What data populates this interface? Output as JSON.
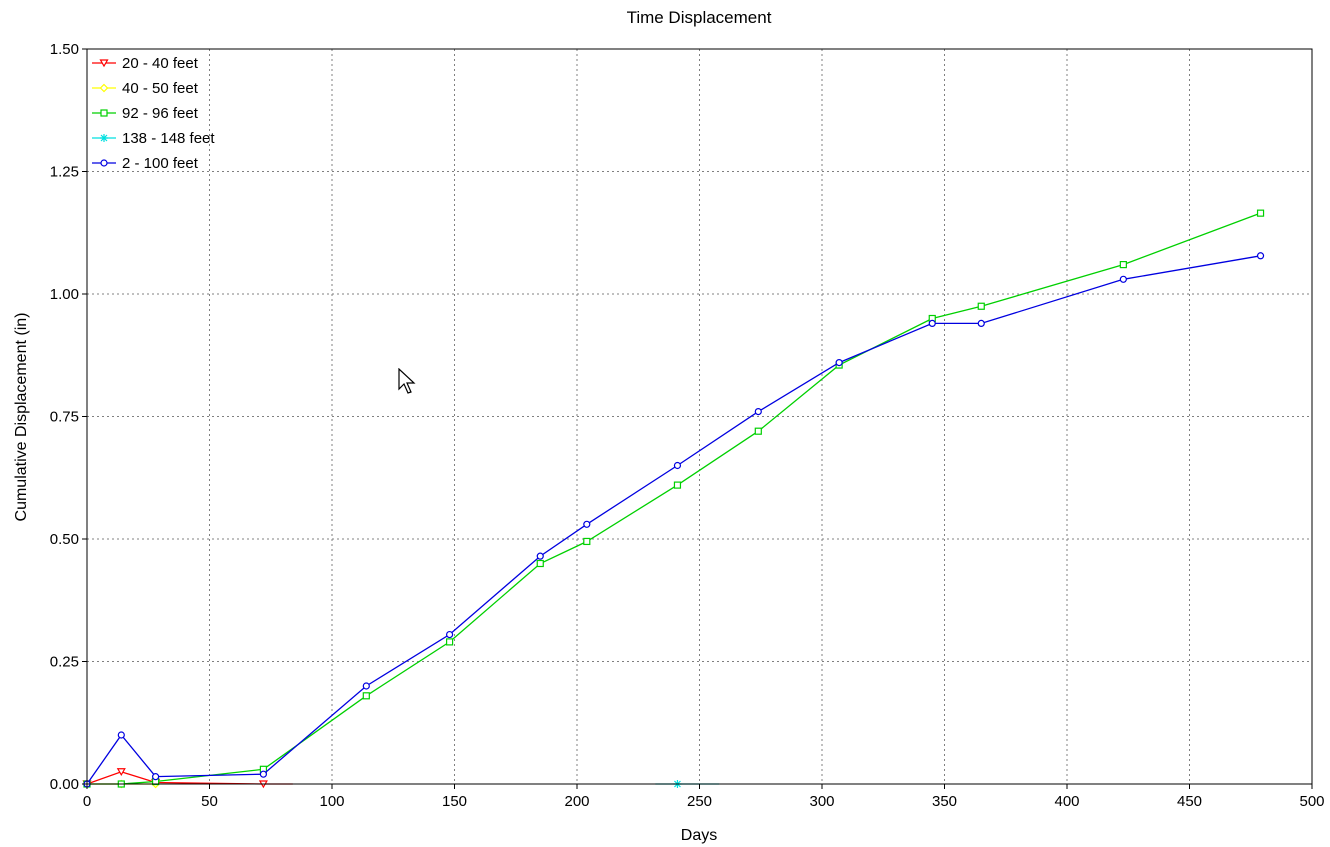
{
  "chart_data": {
    "type": "line",
    "title": "Time Displacement",
    "xlabel": "Days",
    "ylabel": "Cumulative Displacement (in)",
    "xlim": [
      0,
      500
    ],
    "ylim": [
      0,
      1.5
    ],
    "xticks": [
      0,
      50,
      100,
      150,
      200,
      250,
      300,
      350,
      400,
      450,
      500
    ],
    "yticks": [
      0,
      0.25,
      0.5,
      0.75,
      1.0,
      1.25,
      1.5
    ],
    "ytick_labels": [
      "0.00",
      "0.25",
      "0.50",
      "0.75",
      "1.00",
      "1.25",
      "1.50"
    ],
    "xtick_labels": [
      "0",
      "50",
      "100",
      "150",
      "200",
      "250",
      "300",
      "350",
      "400",
      "450",
      "500"
    ],
    "grid": true,
    "legend_position": "top-left",
    "series": [
      {
        "name": "20 - 40 feet",
        "color": "#ff0000",
        "marker": "triangle-down",
        "x": [
          0,
          14,
          28,
          72,
          84
        ],
        "y": [
          0,
          0.025,
          0.003,
          0.0,
          0.0
        ],
        "marker_count": 4
      },
      {
        "name": "40 - 50 feet",
        "color": "#ffff00",
        "marker": "diamond",
        "x": [
          0,
          14,
          28
        ],
        "y": [
          0,
          0,
          0
        ],
        "marker_count": 3
      },
      {
        "name": "92 - 96 feet",
        "color": "#00d000",
        "marker": "square",
        "x": [
          0,
          14,
          28,
          72,
          114,
          148,
          185,
          204,
          241,
          274,
          307,
          345,
          365,
          423,
          479
        ],
        "y": [
          0,
          0,
          0.005,
          0.03,
          0.18,
          0.29,
          0.45,
          0.495,
          0.61,
          0.72,
          0.855,
          0.95,
          0.975,
          1.06,
          1.165
        ],
        "marker_count": 15
      },
      {
        "name": "138 - 148 feet",
        "color": "#00e0e0",
        "marker": "star",
        "x": [
          232,
          241,
          258
        ],
        "y": [
          0,
          0,
          0
        ],
        "marker_count": 1
      },
      {
        "name": "2 - 100 feet",
        "color": "#0000e0",
        "marker": "circle",
        "x": [
          0,
          14,
          28,
          72,
          114,
          148,
          185,
          204,
          241,
          274,
          307,
          345,
          365,
          423,
          479
        ],
        "y": [
          0,
          0.1,
          0.015,
          0.02,
          0.2,
          0.305,
          0.465,
          0.53,
          0.65,
          0.76,
          0.86,
          0.94,
          0.94,
          1.03,
          1.078
        ],
        "marker_count": 15
      }
    ]
  }
}
